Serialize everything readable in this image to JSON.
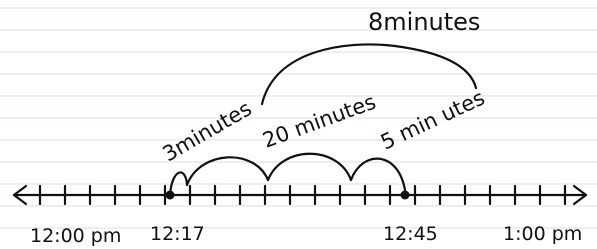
{
  "diagram": {
    "labels": {
      "total": "8minutes",
      "jump1": "3minutes",
      "jump2": "20 minutes",
      "jump3": "5 min utes"
    },
    "ticks": {
      "start": "12:00 pm",
      "point1": "12:17",
      "point2": "12:45",
      "end": "1:00 pm"
    }
  }
}
